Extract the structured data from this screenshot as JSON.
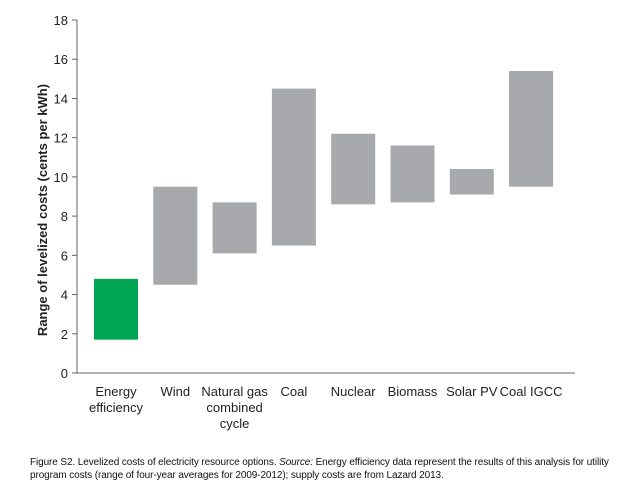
{
  "chart_data": {
    "type": "bar",
    "subtype": "floating-range",
    "categories": [
      [
        "Energy",
        "efficiency"
      ],
      [
        "Wind"
      ],
      [
        "Natural gas",
        "combined",
        "cycle"
      ],
      [
        "Coal"
      ],
      [
        "Nuclear"
      ],
      [
        "Biomass"
      ],
      [
        "Solar PV"
      ],
      [
        "Coal IGCC"
      ]
    ],
    "ranges": [
      [
        1.7,
        4.8
      ],
      [
        4.5,
        9.5
      ],
      [
        6.1,
        8.7
      ],
      [
        6.5,
        14.5
      ],
      [
        8.6,
        12.2
      ],
      [
        8.7,
        11.6
      ],
      [
        9.1,
        10.4
      ],
      [
        9.5,
        15.4
      ]
    ],
    "ylabel": "Range of levelized costs (cents per kWh)",
    "ylim": [
      0,
      18
    ],
    "yticks": [
      0,
      2,
      4,
      6,
      8,
      10,
      12,
      14,
      16,
      18
    ],
    "grid": false,
    "colors": {
      "highlight": "#00a651",
      "default": "#a7a9ac",
      "axis": "#666666"
    }
  },
  "caption": {
    "figure": "Figure S2. Levelized costs of electricity resource options. ",
    "source_label": "Source:",
    "text": " Energy efficiency data represent the results of this analysis for utility program costs (range of four-year averages for 2009-2012); supply costs are from Lazard 2013."
  }
}
